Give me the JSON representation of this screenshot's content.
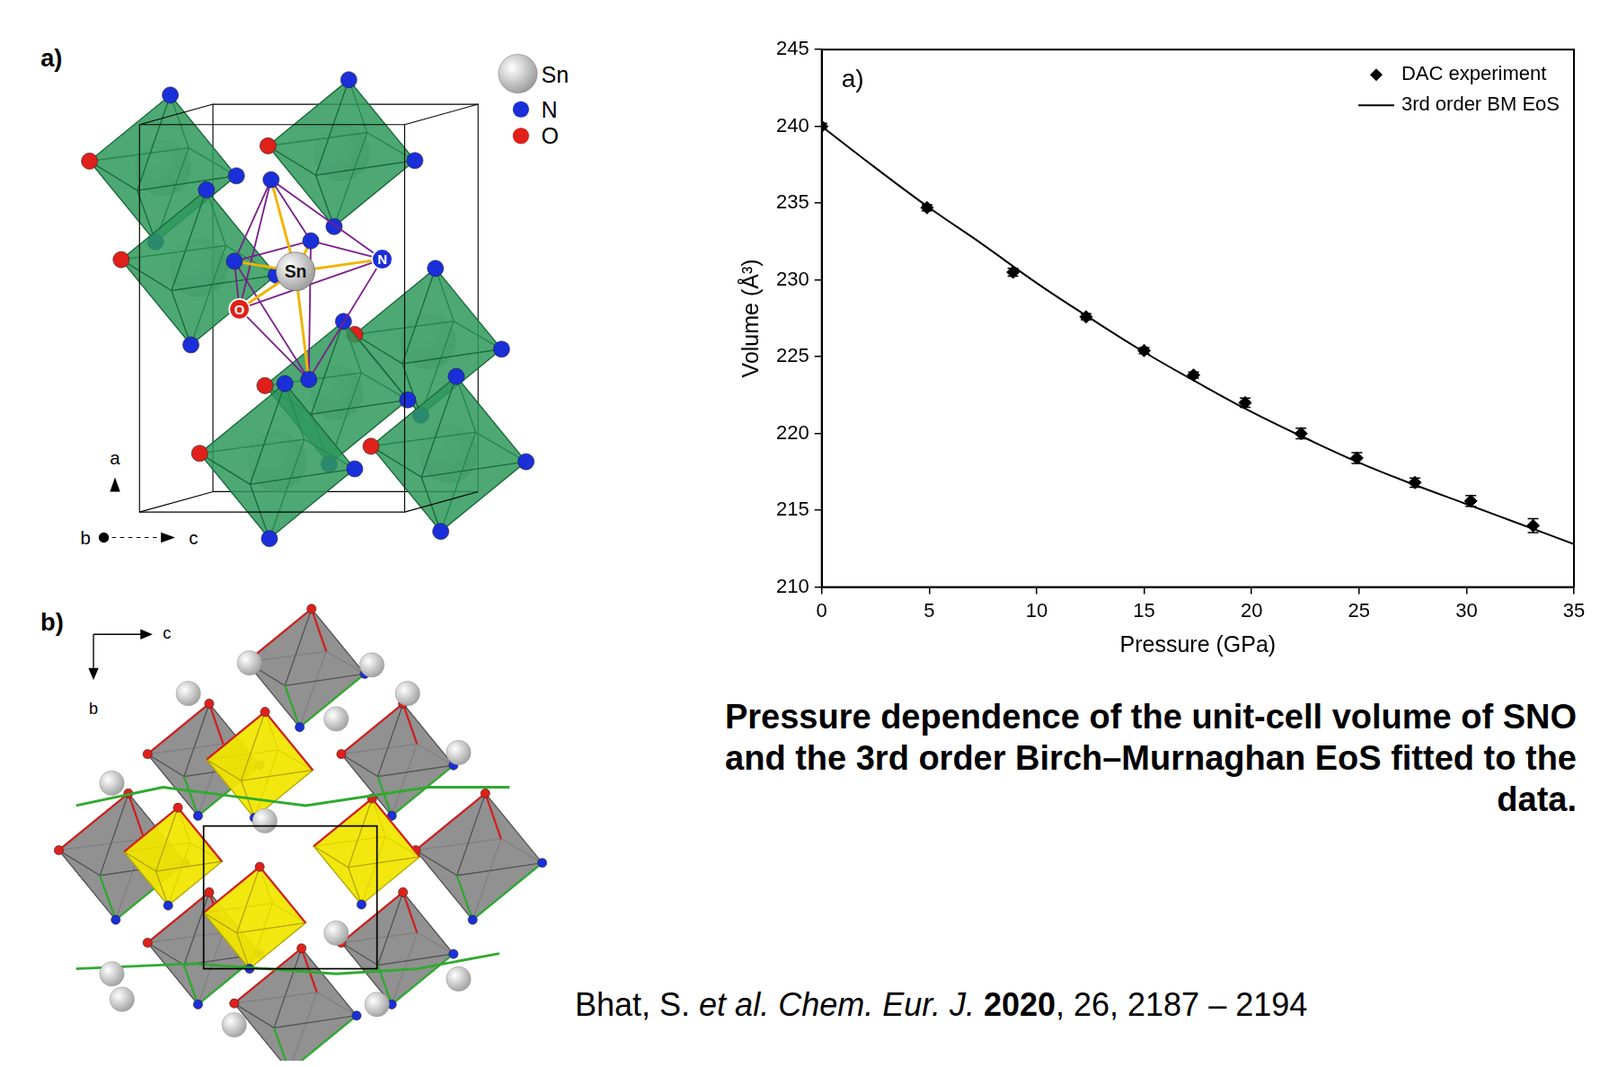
{
  "chart_data": {
    "type": "scatter",
    "x_label": "Pressure (GPa)",
    "y_label": "Volume (Å³)",
    "annotations": [
      "a)"
    ],
    "xlim": [
      0,
      35
    ],
    "xticks": [
      0,
      5,
      10,
      15,
      20,
      25,
      30,
      35
    ],
    "ylim": [
      210,
      245
    ],
    "yticks": [
      210,
      215,
      220,
      225,
      230,
      235,
      240,
      245
    ],
    "grid": false,
    "legend": "top right",
    "series": [
      {
        "name": "DAC experiment",
        "type": "scatter",
        "marker": "diamond",
        "color": "#000000",
        "x": [
          0,
          4.9,
          8.9,
          12.3,
          15.0,
          17.3,
          19.7,
          22.3,
          24.9,
          27.6,
          30.2,
          33.1
        ],
        "values": [
          240.0,
          234.7,
          230.5,
          227.6,
          225.4,
          223.8,
          222.0,
          220.0,
          218.4,
          216.8,
          215.6,
          214.0
        ],
        "yerr": [
          0.2,
          0.2,
          0.25,
          0.2,
          0.2,
          0.2,
          0.3,
          0.35,
          0.35,
          0.3,
          0.35,
          0.45
        ]
      },
      {
        "name": "3rd order BM EoS",
        "type": "line",
        "line_style": "solid",
        "color": "#000000",
        "x": [
          0,
          2.5,
          5,
          7.5,
          10,
          12.5,
          15,
          17.5,
          20,
          22.5,
          25,
          27.5,
          30,
          32.5,
          35
        ],
        "values": [
          240.0,
          237.3,
          234.7,
          232.3,
          229.8,
          227.5,
          225.3,
          223.3,
          221.4,
          219.7,
          218.1,
          216.7,
          215.4,
          214.1,
          212.8
        ]
      }
    ]
  },
  "figure": {
    "structures": [
      {
        "label": "a)",
        "legend": [
          {
            "text": "Sn",
            "color": "#d8d8d8"
          },
          {
            "text": "N",
            "color": "#1a2fd8"
          },
          {
            "text": "O",
            "color": "#e0201a"
          }
        ],
        "atom_labels": [
          "Sn",
          "N",
          "O"
        ],
        "axes": [
          "a",
          "b",
          "c"
        ]
      },
      {
        "label": "b)",
        "axes": [
          "c",
          "b"
        ]
      }
    ],
    "caption": "Pressure dependence of the unit-cell volume of SNO and the 3rd order Birch–Murnaghan EoS fitted to the data.",
    "citation": [
      {
        "text": "Bhat, S."
      },
      {
        "text": "et al.",
        "style": "italic"
      },
      {
        "text": "Chem. Eur. J.",
        "style": "italic"
      },
      {
        "text": "2020",
        "style": "bold"
      },
      {
        "text": ", 26, 2187 – 2194"
      }
    ]
  }
}
